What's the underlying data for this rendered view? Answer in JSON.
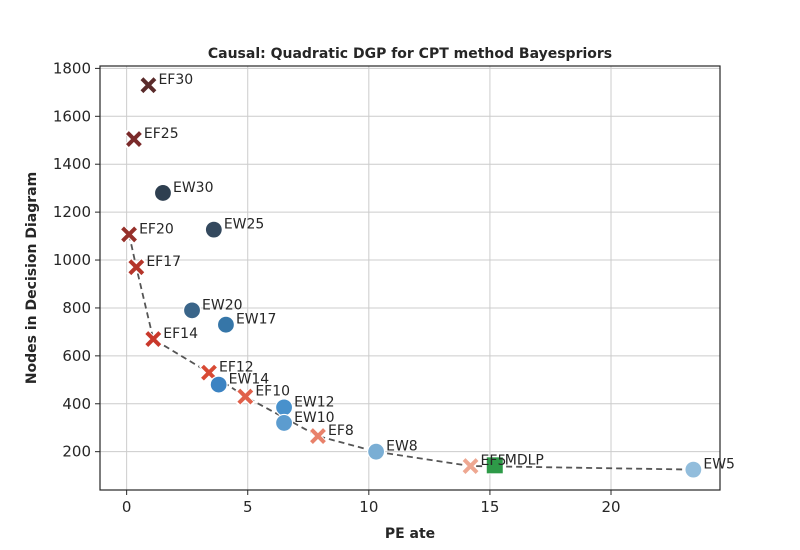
{
  "chart_data": {
    "type": "scatter",
    "title": "Causal: Quadratic DGP for CPT method Bayespriors",
    "xlabel": "PE ate",
    "ylabel": "Nodes in Decision Diagram",
    "xlim": [
      -1.1,
      24.5
    ],
    "ylim": [
      40,
      1810
    ],
    "xticks": [
      0,
      5,
      10,
      15,
      20
    ],
    "yticks": [
      200,
      400,
      600,
      800,
      1000,
      1200,
      1400,
      1600,
      1800
    ],
    "grid": true,
    "points": [
      {
        "label": "EF30",
        "x": 0.9,
        "y": 1730,
        "marker": "x",
        "color": "#5a2b2b"
      },
      {
        "label": "EF25",
        "x": 0.3,
        "y": 1505,
        "marker": "x",
        "color": "#7a2a2a"
      },
      {
        "label": "EW30",
        "x": 1.5,
        "y": 1280,
        "marker": "circle",
        "color": "#2e3f50"
      },
      {
        "label": "EW25",
        "x": 3.6,
        "y": 1127,
        "marker": "circle",
        "color": "#34495e"
      },
      {
        "label": "EF20",
        "x": 0.1,
        "y": 1107,
        "marker": "x",
        "color": "#96302a"
      },
      {
        "label": "EF17",
        "x": 0.4,
        "y": 970,
        "marker": "x",
        "color": "#b5352a"
      },
      {
        "label": "EW20",
        "x": 2.7,
        "y": 790,
        "marker": "circle",
        "color": "#3a6589"
      },
      {
        "label": "EW17",
        "x": 4.1,
        "y": 730,
        "marker": "circle",
        "color": "#3676a8"
      },
      {
        "label": "EF14",
        "x": 1.1,
        "y": 670,
        "marker": "x",
        "color": "#c9382b"
      },
      {
        "label": "EF12",
        "x": 3.4,
        "y": 530,
        "marker": "x",
        "color": "#d84a34"
      },
      {
        "label": "EW14",
        "x": 3.8,
        "y": 480,
        "marker": "circle",
        "color": "#3c83c2"
      },
      {
        "label": "EF10",
        "x": 4.9,
        "y": 430,
        "marker": "x",
        "color": "#e0604a"
      },
      {
        "label": "EW12",
        "x": 6.5,
        "y": 385,
        "marker": "circle",
        "color": "#4891cc"
      },
      {
        "label": "EW10",
        "x": 6.5,
        "y": 320,
        "marker": "circle",
        "color": "#5c9ccf"
      },
      {
        "label": "EF8",
        "x": 7.9,
        "y": 265,
        "marker": "x",
        "color": "#e8816a"
      },
      {
        "label": "EW8",
        "x": 10.3,
        "y": 200,
        "marker": "circle",
        "color": "#7aaed4"
      },
      {
        "label": "EF5",
        "x": 14.2,
        "y": 140,
        "marker": "x",
        "color": "#eea791"
      },
      {
        "label": "MDLP",
        "x": 15.2,
        "y": 143,
        "marker": "square",
        "color": "#2e9a48"
      },
      {
        "label": "EW5",
        "x": 23.4,
        "y": 125,
        "marker": "circle",
        "color": "#92bddc"
      }
    ],
    "pareto_line": {
      "style": "dashed",
      "color": "#555555",
      "points": [
        {
          "x": 0.1,
          "y": 1107
        },
        {
          "x": 0.4,
          "y": 970
        },
        {
          "x": 1.1,
          "y": 670
        },
        {
          "x": 3.4,
          "y": 530
        },
        {
          "x": 4.9,
          "y": 430
        },
        {
          "x": 7.9,
          "y": 265
        },
        {
          "x": 10.3,
          "y": 200
        },
        {
          "x": 14.2,
          "y": 140
        },
        {
          "x": 23.4,
          "y": 125
        }
      ]
    }
  }
}
